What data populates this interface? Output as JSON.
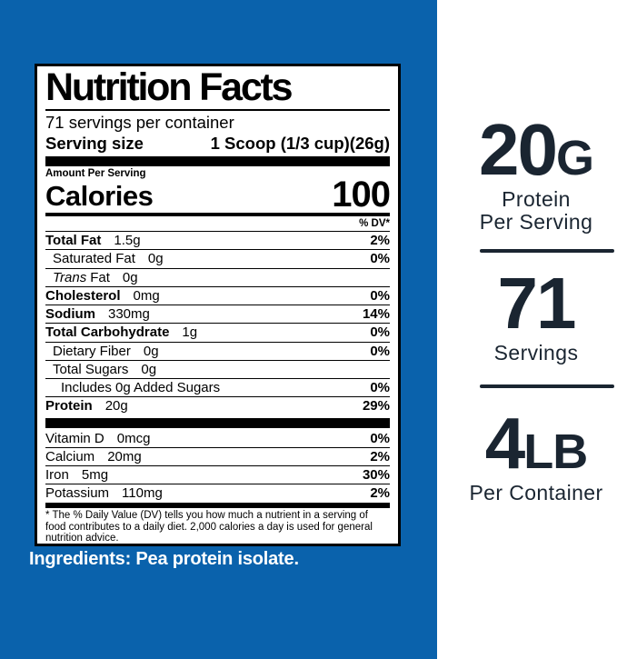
{
  "colors": {
    "panel_blue": "#0a62ac",
    "navy_text": "#1a2531",
    "label_black": "#000000",
    "white": "#ffffff"
  },
  "label": {
    "title": "Nutrition Facts",
    "servings_per_container": "71 servings per container",
    "serving_size_label": "Serving size",
    "serving_size_value": "1 Scoop (1/3 cup)(26g)",
    "amount_per_serving": "Amount Per Serving",
    "calories_label": "Calories",
    "calories_value": "100",
    "dv_header": "% DV*",
    "rows": [
      {
        "name": "Total Fat",
        "amount": "1.5g",
        "dv": "2%"
      },
      {
        "name": "Saturated Fat",
        "amount": "0g",
        "dv": "0%"
      },
      {
        "name_italic": "Trans",
        "name": "Fat",
        "amount": "0g",
        "dv": ""
      },
      {
        "name": "Cholesterol",
        "amount": "0mg",
        "dv": "0%"
      },
      {
        "name": "Sodium",
        "amount": "330mg",
        "dv": "14%"
      },
      {
        "name": "Total Carbohydrate",
        "amount": "1g",
        "dv": "0%"
      },
      {
        "name": "Dietary Fiber",
        "amount": "0g",
        "dv": "0%"
      },
      {
        "name": "Total Sugars",
        "amount": "0g",
        "dv": ""
      },
      {
        "name": "Includes 0g Added Sugars",
        "amount": "",
        "dv": "0%"
      },
      {
        "name": "Protein",
        "amount": "20g",
        "dv": "29%"
      }
    ],
    "micro_rows": [
      {
        "name": "Vitamin D",
        "amount": "0mcg",
        "dv": "0%"
      },
      {
        "name": "Calcium",
        "amount": "20mg",
        "dv": "2%"
      },
      {
        "name": "Iron",
        "amount": "5mg",
        "dv": "30%"
      },
      {
        "name": "Potassium",
        "amount": "110mg",
        "dv": "2%"
      }
    ],
    "footnote": "* The % Daily Value (DV) tells you how much a nutrient in a serving of food contributes to a daily diet. 2,000 calories a day is used for general nutrition advice."
  },
  "ingredients": "Ingredients: Pea protein isolate.",
  "callouts": [
    {
      "value": "20",
      "unit": "G",
      "caption_line1": "Protein",
      "caption_line2": "Per Serving"
    },
    {
      "value": "71",
      "unit": "",
      "caption_line1": "Servings",
      "caption_line2": ""
    },
    {
      "value": "4",
      "unit": "LB",
      "caption_line1": "Per Container",
      "caption_line2": ""
    }
  ]
}
